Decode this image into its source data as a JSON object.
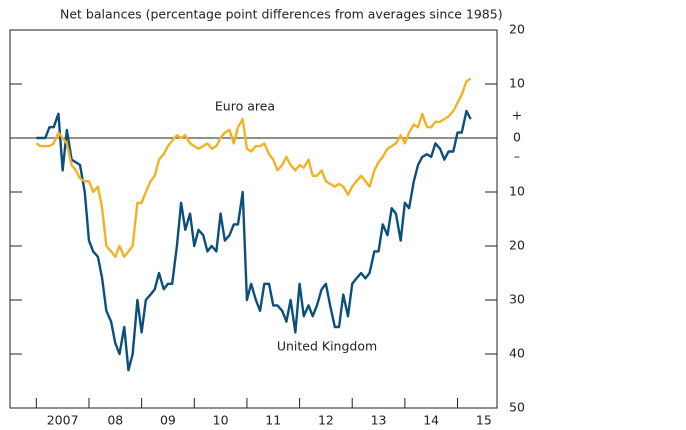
{
  "chart_data": {
    "type": "line",
    "title": "Net balances (percentage point differences from averages since 1985)",
    "annotations": [
      "Euro area",
      "United Kingdom",
      "+",
      "–"
    ],
    "x": [
      2007,
      2007.08,
      2007.17,
      2007.25,
      2007.33,
      2007.42,
      2007.5,
      2007.58,
      2007.67,
      2007.75,
      2007.83,
      2007.92,
      2008,
      2008.08,
      2008.17,
      2008.25,
      2008.33,
      2008.42,
      2008.5,
      2008.58,
      2008.67,
      2008.75,
      2008.83,
      2008.92,
      2009,
      2009.08,
      2009.17,
      2009.25,
      2009.33,
      2009.42,
      2009.5,
      2009.58,
      2009.67,
      2009.75,
      2009.83,
      2009.92,
      2010,
      2010.08,
      2010.17,
      2010.25,
      2010.33,
      2010.42,
      2010.5,
      2010.58,
      2010.67,
      2010.75,
      2010.83,
      2010.92,
      2011,
      2011.08,
      2011.17,
      2011.25,
      2011.33,
      2011.42,
      2011.5,
      2011.58,
      2011.67,
      2011.75,
      2011.83,
      2011.92,
      2012,
      2012.08,
      2012.17,
      2012.25,
      2012.33,
      2012.42,
      2012.5,
      2012.58,
      2012.67,
      2012.75,
      2012.83,
      2012.92,
      2013,
      2013.08,
      2013.17,
      2013.25,
      2013.33,
      2013.42,
      2013.5,
      2013.58,
      2013.67,
      2013.75,
      2013.83,
      2013.92,
      2014,
      2014.08,
      2014.17,
      2014.25,
      2014.33,
      2014.42,
      2014.5,
      2014.58,
      2014.67,
      2014.75,
      2014.83,
      2014.92,
      2015,
      2015.08,
      2015.17,
      2015.25
    ],
    "series": [
      {
        "name": "United Kingdom",
        "color": "#0b4f7c",
        "values": [
          0,
          0,
          0,
          2,
          2,
          4.5,
          -6,
          1.5,
          -4,
          -4.5,
          -5,
          -10,
          -19,
          -21,
          -22,
          -26,
          -32,
          -34,
          -38,
          -40,
          -35,
          -43,
          -40,
          -30,
          -36,
          -30,
          -29,
          -28,
          -25,
          -28,
          -27,
          -27,
          -20,
          -12,
          -17,
          -14,
          -20,
          -17,
          -18,
          -21,
          -20,
          -21,
          -14,
          -19,
          -18,
          -16,
          -16,
          -10,
          -30,
          -27,
          -30,
          -32,
          -27,
          -27,
          -31,
          -31,
          -32,
          -34,
          -30,
          -36,
          -27,
          -33,
          -31,
          -33,
          -31,
          -28,
          -27,
          -31,
          -35,
          -35,
          -29,
          -33,
          -27,
          -26,
          -25,
          -26,
          -25,
          -21,
          -21,
          -16,
          -18,
          -13,
          -14,
          -19,
          -12,
          -13,
          -8,
          -5,
          -3.5,
          -3,
          -3.5,
          -1,
          -2,
          -4,
          -2.5,
          -2.5,
          1,
          1,
          5,
          3.5
        ]
      },
      {
        "name": "Euro area",
        "color": "#f0b323",
        "values": [
          -1,
          -1.5,
          -1.5,
          -1.5,
          -1,
          1,
          0,
          -1,
          -5,
          -6,
          -7.5,
          -8,
          -8,
          -10,
          -9,
          -13,
          -20,
          -21,
          -22,
          -20,
          -22,
          -21,
          -20,
          -12,
          -12,
          -10,
          -8,
          -7,
          -4,
          -3,
          -1.5,
          -0.5,
          0.5,
          0,
          0.5,
          -1,
          -1.5,
          -2,
          -1.5,
          -1,
          -2,
          -1.5,
          0,
          1,
          1.5,
          -1,
          2,
          3.5,
          -2,
          -2.5,
          -1.5,
          -1.5,
          -1,
          -3,
          -4,
          -6,
          -5,
          -3.5,
          -5,
          -6,
          -5,
          -5.5,
          -4,
          -7,
          -7,
          -6,
          -8,
          -8.5,
          -9,
          -8.5,
          -9,
          -10.5,
          -9,
          -8,
          -7,
          -8,
          -9,
          -6,
          -4.5,
          -3.5,
          -2,
          -1.5,
          -1,
          0.5,
          -1,
          1,
          2.5,
          2,
          4.5,
          2,
          2,
          3,
          3,
          3.5,
          4,
          5,
          6.5,
          8,
          10.5,
          11
        ]
      }
    ],
    "xlim": [
      2006.5,
      2015.75
    ],
    "xticks": [
      {
        "value": 2007,
        "label": "2007"
      },
      {
        "value": 2008,
        "label": "08"
      },
      {
        "value": 2009,
        "label": "09"
      },
      {
        "value": 2010,
        "label": "10"
      },
      {
        "value": 2011,
        "label": "11"
      },
      {
        "value": 2012,
        "label": "12"
      },
      {
        "value": 2013,
        "label": "13"
      },
      {
        "value": 2014,
        "label": "14"
      },
      {
        "value": 2015,
        "label": "15"
      }
    ],
    "ylim": [
      -50,
      20
    ],
    "yticks": [
      20,
      10,
      0,
      {
        "value": -10,
        "label": "10"
      },
      {
        "value": -20,
        "label": "20"
      },
      {
        "value": -30,
        "label": "30"
      },
      {
        "value": -40,
        "label": "40"
      },
      {
        "value": -50,
        "label": "50"
      }
    ]
  }
}
